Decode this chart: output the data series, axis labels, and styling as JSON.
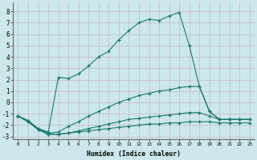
{
  "xlabel": "Humidex (Indice chaleur)",
  "background_color": "#cce8ec",
  "line_color": "#1a7a6e",
  "grid_color": "#b8d8dc",
  "xlim": [
    -0.5,
    23.5
  ],
  "ylim": [
    -3.2,
    8.8
  ],
  "xticks": [
    0,
    1,
    2,
    3,
    4,
    5,
    6,
    7,
    8,
    9,
    10,
    11,
    12,
    13,
    14,
    15,
    16,
    17,
    18,
    19,
    20,
    21,
    22,
    23
  ],
  "yticks": [
    -3,
    -2,
    -1,
    0,
    1,
    2,
    3,
    4,
    5,
    6,
    7,
    8
  ],
  "lines": [
    {
      "x": [
        0,
        1,
        2,
        3,
        4,
        5,
        6,
        7,
        8,
        9,
        10,
        11,
        12,
        13,
        14,
        15,
        16,
        17,
        18,
        19,
        20,
        21,
        22,
        23
      ],
      "y": [
        -1.2,
        -1.6,
        -2.3,
        -2.6,
        2.2,
        2.1,
        2.5,
        3.2,
        4.0,
        4.5,
        5.5,
        6.3,
        7.0,
        7.3,
        7.2,
        7.6,
        7.9,
        5.0,
        1.4,
        -0.8,
        -1.5,
        -1.5,
        -1.5,
        -1.5
      ]
    },
    {
      "x": [
        0,
        1,
        2,
        3,
        4,
        5,
        6,
        7,
        8,
        9,
        10,
        11,
        12,
        13,
        14,
        15,
        16,
        17,
        18,
        19,
        20,
        21,
        22,
        23
      ],
      "y": [
        -1.2,
        -1.6,
        -2.3,
        -2.7,
        -2.6,
        -2.1,
        -1.7,
        -1.2,
        -0.8,
        -0.4,
        0.0,
        0.3,
        0.6,
        0.8,
        1.0,
        1.1,
        1.3,
        1.4,
        1.4,
        -0.8,
        -1.5,
        -1.5,
        -1.5,
        -1.5
      ]
    },
    {
      "x": [
        0,
        1,
        2,
        3,
        4,
        5,
        6,
        7,
        8,
        9,
        10,
        11,
        12,
        13,
        14,
        15,
        16,
        17,
        18,
        19,
        20,
        21,
        22,
        23
      ],
      "y": [
        -1.2,
        -1.7,
        -2.4,
        -2.8,
        -2.8,
        -2.7,
        -2.5,
        -2.3,
        -2.1,
        -1.9,
        -1.7,
        -1.5,
        -1.4,
        -1.3,
        -1.2,
        -1.1,
        -1.0,
        -0.9,
        -0.9,
        -1.2,
        -1.5,
        -1.5,
        -1.5,
        -1.5
      ]
    },
    {
      "x": [
        0,
        1,
        2,
        3,
        4,
        5,
        6,
        7,
        8,
        9,
        10,
        11,
        12,
        13,
        14,
        15,
        16,
        17,
        18,
        19,
        20,
        21,
        22,
        23
      ],
      "y": [
        -1.2,
        -1.7,
        -2.4,
        -2.8,
        -2.8,
        -2.7,
        -2.6,
        -2.5,
        -2.4,
        -2.3,
        -2.2,
        -2.1,
        -2.0,
        -1.9,
        -1.9,
        -1.8,
        -1.8,
        -1.7,
        -1.7,
        -1.7,
        -1.8,
        -1.8,
        -1.8,
        -1.8
      ]
    }
  ]
}
